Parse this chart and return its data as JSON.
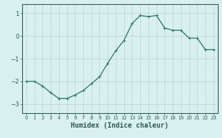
{
  "xlabel": "Humidex (Indice chaleur)",
  "ylabel": "",
  "x_values": [
    0,
    1,
    2,
    3,
    4,
    5,
    6,
    7,
    8,
    9,
    10,
    11,
    12,
    13,
    14,
    15,
    16,
    17,
    18,
    19,
    20,
    21,
    22,
    23
  ],
  "y_values": [
    -2.0,
    -2.0,
    -2.2,
    -2.5,
    -2.75,
    -2.75,
    -2.6,
    -2.4,
    -2.1,
    -1.8,
    -1.2,
    -0.65,
    -0.2,
    0.55,
    0.9,
    0.85,
    0.9,
    0.35,
    0.25,
    0.25,
    -0.1,
    -0.1,
    -0.6,
    -0.6
  ],
  "line_color": "#2d7d6e",
  "marker": "+",
  "marker_size": 3,
  "bg_color": "#d8f0ee",
  "grid_color": "#b8d4d0",
  "tick_label_color": "#2d5a52",
  "axis_color": "#2d5a52",
  "ylim": [
    -3.4,
    1.4
  ],
  "yticks": [
    -3,
    -2,
    -1,
    0,
    1
  ],
  "xlim": [
    -0.5,
    23.5
  ],
  "xlabel_fontsize": 7,
  "tick_fontsize": 6,
  "xtick_fontsize": 5,
  "line_width": 1.0
}
